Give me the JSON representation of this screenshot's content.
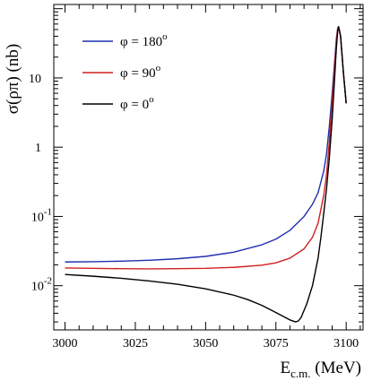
{
  "chart_data": {
    "type": "line",
    "xlabel": "E",
    "xlabel_sub": "c.m.",
    "xlabel_unit": " (MeV)",
    "ylabel": "σ(ρπ) (nb)",
    "ylog": true,
    "xlim": [
      2996,
      3106
    ],
    "ylim": [
      0.0023,
      115
    ],
    "x_ticks": [
      {
        "value": 3000,
        "label": "3000"
      },
      {
        "value": 3025,
        "label": "3025"
      },
      {
        "value": 3050,
        "label": "3050"
      },
      {
        "value": 3075,
        "label": "3075"
      },
      {
        "value": 3100,
        "label": "3100"
      }
    ],
    "y_ticks": [
      {
        "value": 10,
        "base": "10",
        "exp": ""
      },
      {
        "value": 1,
        "base": "1",
        "exp": ""
      },
      {
        "value": 0.1,
        "base": "10",
        "exp": "-1"
      },
      {
        "value": 0.01,
        "base": "10",
        "exp": "-2"
      }
    ],
    "legend_position": "top-left",
    "series": [
      {
        "name": "φ = 180",
        "name_sup": "o",
        "color": "#1f2fb0",
        "x": [
          3000,
          3010,
          3020,
          3030,
          3040,
          3050,
          3060,
          3070,
          3075,
          3080,
          3085,
          3088,
          3090,
          3092,
          3093,
          3094,
          3095,
          3096,
          3096.5,
          3097,
          3097.3,
          3098,
          3099,
          3100
        ],
        "y": [
          0.022,
          0.0222,
          0.0226,
          0.0233,
          0.0245,
          0.0265,
          0.0305,
          0.039,
          0.047,
          0.063,
          0.1,
          0.15,
          0.22,
          0.45,
          0.8,
          2.0,
          6.0,
          20,
          37,
          53,
          55,
          40,
          12,
          4.3
        ]
      },
      {
        "name": "φ = 90",
        "name_sup": "o",
        "color": "#d02020",
        "x": [
          3000,
          3010,
          3020,
          3030,
          3040,
          3050,
          3060,
          3070,
          3075,
          3080,
          3085,
          3088,
          3090,
          3092,
          3093,
          3094,
          3095,
          3096,
          3096.5,
          3097,
          3097.3,
          3098,
          3099,
          3100
        ],
        "y": [
          0.018,
          0.0178,
          0.0176,
          0.0175,
          0.0176,
          0.0178,
          0.0184,
          0.0198,
          0.0214,
          0.025,
          0.034,
          0.05,
          0.08,
          0.2,
          0.4,
          1.2,
          4.5,
          17,
          34,
          52,
          55,
          40,
          12,
          4.3
        ]
      },
      {
        "name": "φ = 0",
        "name_sup": "o",
        "color": "#000000",
        "x": [
          3000,
          3010,
          3020,
          3030,
          3040,
          3050,
          3060,
          3065,
          3070,
          3075,
          3080,
          3082,
          3083,
          3084,
          3086,
          3088,
          3090,
          3091,
          3092,
          3093,
          3094,
          3095,
          3096,
          3096.5,
          3097,
          3097.3,
          3098,
          3099,
          3100
        ],
        "y": [
          0.0145,
          0.0137,
          0.0128,
          0.0117,
          0.0105,
          0.009,
          0.0073,
          0.0063,
          0.0052,
          0.0041,
          0.0032,
          0.003,
          0.0031,
          0.0035,
          0.0055,
          0.01,
          0.025,
          0.05,
          0.11,
          0.25,
          0.7,
          2.5,
          12,
          27,
          48,
          55,
          40,
          12,
          4.3
        ]
      }
    ]
  }
}
